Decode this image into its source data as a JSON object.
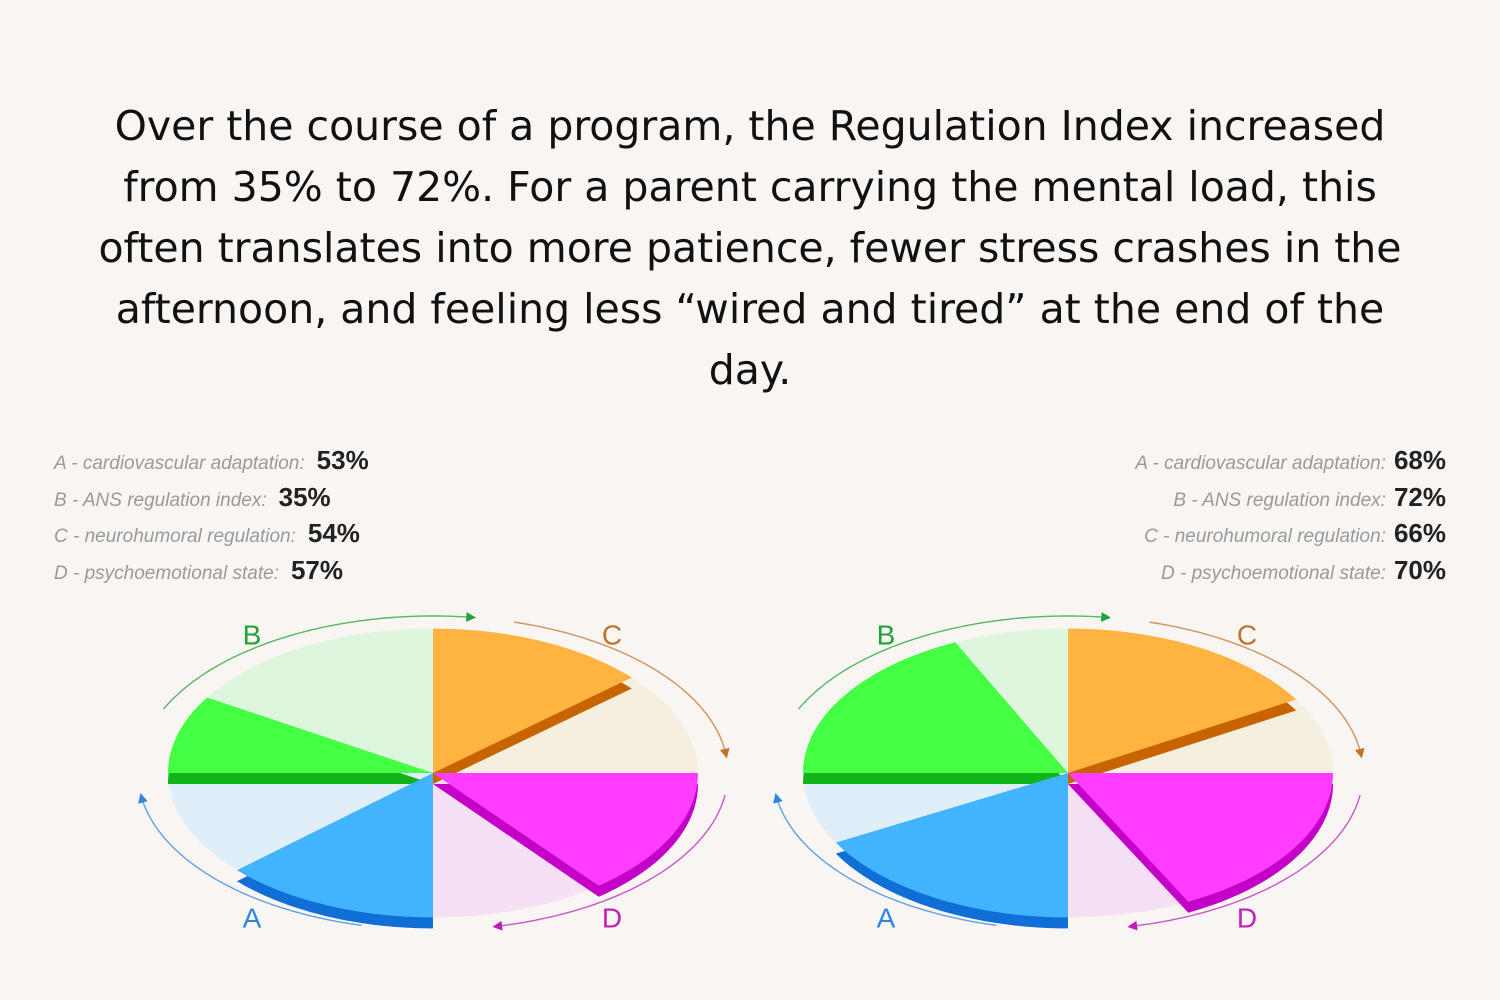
{
  "headline": "Over the course of a program, the Regulation Index increased from 35% to 72%. For a parent carrying the mental load, this often translates into more patience, fewer stress crashes in the afternoon, and feeling less “wired and tired” at the end of the day.",
  "chart_data": [
    {
      "type": "pie",
      "max": 100,
      "categories": [
        "A",
        "B",
        "C",
        "D"
      ],
      "legend": [
        {
          "label": "A - cardiovascular adaptation:",
          "value_text": "53%"
        },
        {
          "label": "B - ANS regulation index:",
          "value_text": "35%"
        },
        {
          "label": "C - neurohumoral regulation:",
          "value_text": "54%"
        },
        {
          "label": "D - psychoemotional state:",
          "value_text": "57%"
        }
      ],
      "values": [
        53,
        35,
        54,
        57
      ],
      "legend_placement": "top-left"
    },
    {
      "type": "pie",
      "max": 100,
      "categories": [
        "A",
        "B",
        "C",
        "D"
      ],
      "legend": [
        {
          "label": "A - cardiovascular adaptation:",
          "value_text": "68%"
        },
        {
          "label": "B - ANS regulation index:",
          "value_text": "72%"
        },
        {
          "label": "C - neurohumoral regulation:",
          "value_text": "66%"
        },
        {
          "label": "D - psychoemotional state:",
          "value_text": "70%"
        }
      ],
      "values": [
        68,
        72,
        66,
        70
      ],
      "legend_placement": "top-right"
    }
  ],
  "colors": {
    "A": {
      "fill": "#42b3fd",
      "dark": "#0f6fd6",
      "bg": "#dfeef8",
      "label": "#2e86de"
    },
    "B": {
      "fill": "#44ff44",
      "dark": "#11b51a",
      "bg": "#def5de",
      "label": "#22a33a"
    },
    "C": {
      "fill": "#ffb340",
      "dark": "#c86400",
      "bg": "#f5efe0",
      "label": "#c0722a"
    },
    "D": {
      "fill": "#ff3cff",
      "dark": "#c400c8",
      "bg": "#f5e0f5",
      "label": "#bb22bb"
    }
  }
}
